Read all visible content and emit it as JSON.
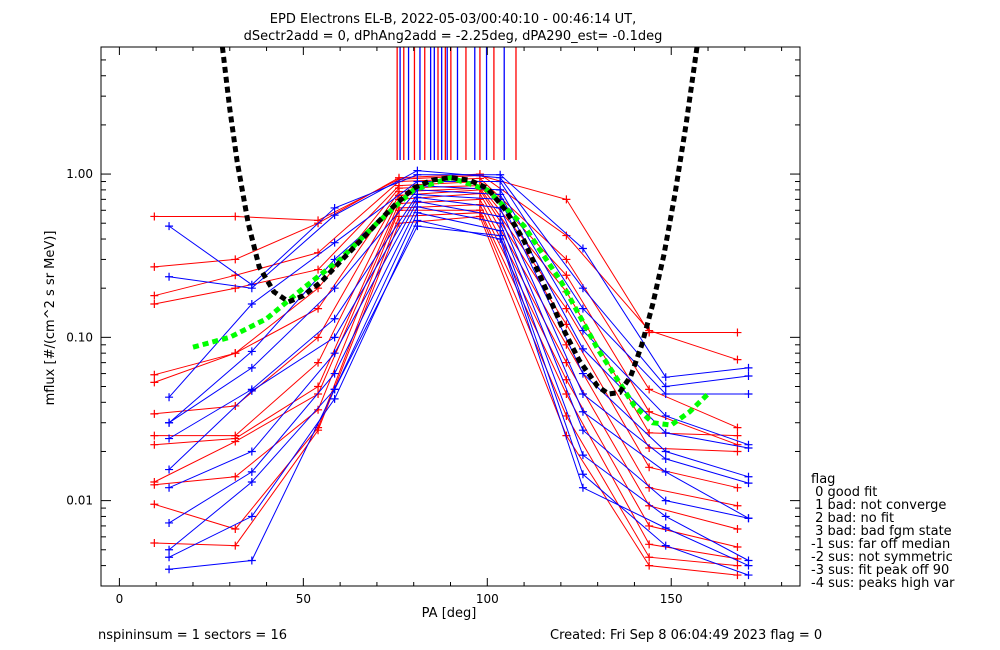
{
  "chart_data": {
    "type": "line",
    "title": "EPD Electrons EL-B, 2022-05-03/00:40:10 - 00:46:14 UT,",
    "subtitle": "dSectr2add = 0, dPhAng2add = -2.25deg, dPA290_est=  -0.1deg",
    "xlabel": "PA [deg]",
    "ylabel": "mflux [#/(cm^2 s sr MeV)]",
    "xlim": [
      -5,
      185
    ],
    "ylim": [
      0.003,
      6
    ],
    "yscale": "log",
    "x_ticks": [
      "0",
      "50",
      "100",
      "150"
    ],
    "y_ticks": [
      "0.01",
      "0.10",
      "1.00"
    ],
    "grid": false,
    "legend": {
      "title": "flag",
      "entries": [
        " 0 good fit",
        " 1 bad: not converge",
        " 2 bad: no fit",
        " 3 bad: bad fgm state",
        "-1 sus: far off median",
        "-2 sus: not symmetric",
        "-3 sus: fit peak off 90",
        "-4 sus: peaks high var"
      ]
    },
    "series": [
      {
        "color": "#ff0000",
        "x": [
          9.5,
          31.5,
          54,
          76,
          98,
          121.5,
          144,
          168
        ],
        "y": [
          0.55,
          0.55,
          0.52,
          0.93,
          0.98,
          0.7,
          0.107,
          0.107
        ]
      },
      {
        "color": "#ff0000",
        "x": [
          9.5,
          31.5,
          54,
          76,
          98,
          121.5,
          144,
          168
        ],
        "y": [
          0.27,
          0.3,
          0.5,
          0.95,
          1.0,
          0.42,
          0.11,
          0.073
        ]
      },
      {
        "color": "#ff0000",
        "x": [
          9.5,
          31.5,
          54,
          76,
          98,
          121.5,
          144,
          168
        ],
        "y": [
          0.18,
          0.24,
          0.33,
          0.9,
          0.94,
          0.3,
          0.048,
          0.028
        ]
      },
      {
        "color": "#ff0000",
        "x": [
          9.5,
          31.5,
          54,
          76,
          98,
          121.5,
          144,
          168
        ],
        "y": [
          0.16,
          0.2,
          0.26,
          0.85,
          0.9,
          0.24,
          0.035,
          0.022
        ]
      },
      {
        "color": "#ff0000",
        "x": [
          9.5,
          31.5,
          54,
          76,
          98,
          121.5,
          144,
          168
        ],
        "y": [
          0.059,
          0.08,
          0.2,
          0.82,
          0.85,
          0.19,
          0.026,
          0.025
        ]
      },
      {
        "color": "#ff0000",
        "x": [
          9.5,
          31.5,
          54,
          76,
          98,
          121.5,
          144,
          168
        ],
        "y": [
          0.053,
          0.08,
          0.15,
          0.78,
          0.82,
          0.15,
          0.021,
          0.02
        ]
      },
      {
        "color": "#ff0000",
        "x": [
          9.5,
          31.5,
          54,
          76,
          98,
          121.5,
          144,
          168
        ],
        "y": [
          0.034,
          0.038,
          0.1,
          0.74,
          0.8,
          0.12,
          0.016,
          0.012
        ]
      },
      {
        "color": "#ff0000",
        "x": [
          9.5,
          31.5,
          54,
          76,
          98,
          121.5,
          144,
          168
        ],
        "y": [
          0.025,
          0.025,
          0.07,
          0.7,
          0.76,
          0.09,
          0.012,
          0.0093
        ]
      },
      {
        "color": "#ff0000",
        "x": [
          9.5,
          31.5,
          54,
          76,
          98,
          121.5,
          144,
          168
        ],
        "y": [
          0.022,
          0.024,
          0.05,
          0.66,
          0.7,
          0.07,
          0.0093,
          0.0067
        ]
      },
      {
        "color": "#ff0000",
        "x": [
          9.5,
          31.5,
          54,
          76,
          98,
          121.5,
          144,
          168
        ],
        "y": [
          0.013,
          0.023,
          0.045,
          0.62,
          0.65,
          0.055,
          0.007,
          0.0052
        ]
      },
      {
        "color": "#ff0000",
        "x": [
          9.5,
          31.5,
          54,
          76,
          98,
          121.5,
          144,
          168
        ],
        "y": [
          0.0125,
          0.014,
          0.036,
          0.6,
          0.6,
          0.045,
          0.0054,
          0.0044
        ]
      },
      {
        "color": "#ff0000",
        "x": [
          9.5,
          31.5,
          54,
          76,
          98,
          121.5,
          144,
          168
        ],
        "y": [
          0.0095,
          0.0067,
          0.028,
          0.55,
          0.58,
          0.033,
          0.0045,
          0.004
        ]
      },
      {
        "color": "#ff0000",
        "x": [
          9.5,
          31.5,
          54,
          76,
          98,
          121.5,
          144,
          168
        ],
        "y": [
          0.0055,
          0.0053,
          0.027,
          0.5,
          0.55,
          0.025,
          0.004,
          0.0035
        ]
      },
      {
        "color": "#0000ff",
        "x": [
          13.5,
          36,
          58.5,
          81,
          103.5,
          126,
          148.5,
          171
        ],
        "y": [
          0.48,
          0.21,
          0.62,
          0.99,
          0.99,
          0.35,
          0.057,
          0.065
        ]
      },
      {
        "color": "#0000ff",
        "x": [
          13.5,
          36,
          58.5,
          81,
          103.5,
          126,
          148.5,
          171
        ],
        "y": [
          0.235,
          0.2,
          0.56,
          1.05,
          0.95,
          0.2,
          0.05,
          0.058
        ]
      },
      {
        "color": "#0000ff",
        "x": [
          13.5,
          36,
          58.5,
          81,
          103.5,
          126,
          148.5,
          171
        ],
        "y": [
          0.043,
          0.16,
          0.38,
          0.9,
          0.9,
          0.15,
          0.045,
          0.045
        ]
      },
      {
        "color": "#0000ff",
        "x": [
          13.5,
          36,
          58.5,
          81,
          103.5,
          126,
          148.5,
          171
        ],
        "y": [
          0.03,
          0.082,
          0.3,
          0.85,
          0.8,
          0.11,
          0.033,
          0.022
        ]
      },
      {
        "color": "#0000ff",
        "x": [
          13.5,
          36,
          58.5,
          81,
          103.5,
          126,
          148.5,
          171
        ],
        "y": [
          0.03,
          0.065,
          0.2,
          0.8,
          0.75,
          0.085,
          0.026,
          0.021
        ]
      },
      {
        "color": "#0000ff",
        "x": [
          13.5,
          36,
          58.5,
          81,
          103.5,
          126,
          148.5,
          171
        ],
        "y": [
          0.024,
          0.048,
          0.13,
          0.75,
          0.7,
          0.06,
          0.02,
          0.014
        ]
      },
      {
        "color": "#0000ff",
        "x": [
          13.5,
          36,
          58.5,
          81,
          103.5,
          126,
          148.5,
          171
        ],
        "y": [
          0.0155,
          0.047,
          0.1,
          0.72,
          0.62,
          0.045,
          0.018,
          0.0128
        ]
      },
      {
        "color": "#0000ff",
        "x": [
          13.5,
          36,
          58.5,
          81,
          103.5,
          126,
          148.5,
          171
        ],
        "y": [
          0.012,
          0.02,
          0.08,
          0.68,
          0.55,
          0.035,
          0.015,
          0.0078
        ]
      },
      {
        "color": "#0000ff",
        "x": [
          13.5,
          36,
          58.5,
          81,
          103.5,
          126,
          148.5,
          171
        ],
        "y": [
          0.0073,
          0.015,
          0.06,
          0.63,
          0.5,
          0.027,
          0.01,
          0.0078
        ]
      },
      {
        "color": "#0000ff",
        "x": [
          13.5,
          36,
          58.5,
          81,
          103.5,
          126,
          148.5,
          171
        ],
        "y": [
          0.005,
          0.013,
          0.048,
          0.58,
          0.45,
          0.019,
          0.008,
          0.0043
        ]
      },
      {
        "color": "#0000ff",
        "x": [
          13.5,
          36,
          58.5,
          81,
          103.5,
          126,
          148.5,
          171
        ],
        "y": [
          0.0045,
          0.008,
          0.042,
          0.52,
          0.4,
          0.012,
          0.0068,
          0.004
        ]
      },
      {
        "color": "#0000ff",
        "x": [
          13.5,
          36,
          58.5,
          81,
          103.5,
          126,
          148.5,
          171
        ],
        "y": [
          0.0038,
          0.0043,
          0.048,
          0.48,
          0.42,
          0.0145,
          0.0053,
          0.0035
        ]
      },
      {
        "color": "#00ff00",
        "style": "dashed-thick",
        "x": [
          20,
          30,
          40,
          50,
          60,
          70,
          80,
          90,
          100,
          110,
          120,
          130,
          140,
          145,
          150,
          155,
          160
        ],
        "y": [
          0.087,
          0.1,
          0.13,
          0.2,
          0.3,
          0.5,
          0.8,
          0.95,
          0.8,
          0.48,
          0.22,
          0.085,
          0.038,
          0.03,
          0.029,
          0.035,
          0.045
        ]
      },
      {
        "color": "#000000",
        "style": "dashed-thick",
        "x": [
          28,
          30,
          32,
          35,
          38,
          42,
          46,
          50,
          55,
          60,
          65,
          70,
          75,
          80,
          85,
          90,
          95,
          100,
          105,
          110,
          115,
          120,
          125,
          130,
          133,
          136,
          139,
          142,
          145,
          148,
          151,
          154,
          157
        ],
        "y": [
          6,
          2.5,
          1.2,
          0.5,
          0.27,
          0.19,
          0.165,
          0.18,
          0.22,
          0.29,
          0.38,
          0.5,
          0.65,
          0.82,
          0.92,
          0.95,
          0.92,
          0.82,
          0.6,
          0.39,
          0.22,
          0.12,
          0.072,
          0.05,
          0.045,
          0.046,
          0.058,
          0.09,
          0.16,
          0.32,
          0.75,
          2.0,
          6.0
        ]
      }
    ],
    "top_ticks": [
      {
        "x": 75.5,
        "color": "#ff0000"
      },
      {
        "x": 76.3,
        "color": "#0000ff"
      },
      {
        "x": 77.3,
        "color": "#ff0000"
      },
      {
        "x": 78.6,
        "color": "#0000ff"
      },
      {
        "x": 80.2,
        "color": "#ff0000"
      },
      {
        "x": 81.7,
        "color": "#0000ff"
      },
      {
        "x": 83.0,
        "color": "#ff0000"
      },
      {
        "x": 84.6,
        "color": "#0000ff"
      },
      {
        "x": 85.6,
        "color": "#0000ff"
      },
      {
        "x": 86.6,
        "color": "#ff0000"
      },
      {
        "x": 87.6,
        "color": "#0000ff"
      },
      {
        "x": 88.6,
        "color": "#ff0000"
      },
      {
        "x": 89.1,
        "color": "#0000ff"
      },
      {
        "x": 90.1,
        "color": "#ff0000"
      },
      {
        "x": 91.9,
        "color": "#0000ff"
      },
      {
        "x": 94.2,
        "color": "#ff0000"
      },
      {
        "x": 96.6,
        "color": "#0000ff"
      },
      {
        "x": 98.0,
        "color": "#ff0000"
      },
      {
        "x": 99.8,
        "color": "#0000ff"
      },
      {
        "x": 101.8,
        "color": "#ff0000"
      },
      {
        "x": 104.6,
        "color": "#0000ff"
      },
      {
        "x": 107.8,
        "color": "#ff0000"
      }
    ]
  },
  "footer": {
    "left": "nspininsum =  1  sectors = 16",
    "right": "Created: Fri Sep  8 06:04:49 2023   flag = 0"
  }
}
